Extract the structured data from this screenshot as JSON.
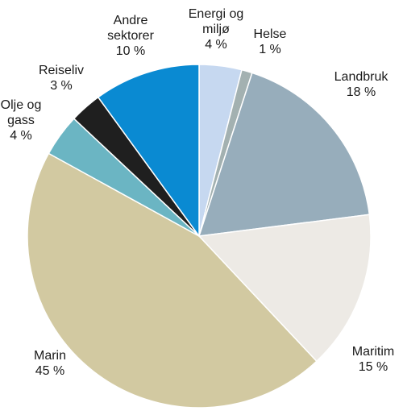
{
  "chart_data": {
    "type": "pie",
    "title": "",
    "slices": [
      {
        "name": "Energi og miljø",
        "label_lines": [
          "Energi og",
          "miljø"
        ],
        "value": 4,
        "value_label": "4 %",
        "color": "#c6d8f0"
      },
      {
        "name": "Helse",
        "label_lines": [
          "Helse"
        ],
        "value": 1,
        "value_label": "1 %",
        "color": "#a3b1b1"
      },
      {
        "name": "Landbruk",
        "label_lines": [
          "Landbruk"
        ],
        "value": 18,
        "value_label": "18 %",
        "color": "#97adbb"
      },
      {
        "name": "Maritim",
        "label_lines": [
          "Maritim"
        ],
        "value": 15,
        "value_label": "15 %",
        "color": "#edeae5"
      },
      {
        "name": "Marin",
        "label_lines": [
          "Marin"
        ],
        "value": 45,
        "value_label": "45 %",
        "color": "#d2c9a1"
      },
      {
        "name": "Olje og gass",
        "label_lines": [
          "Olje og",
          "gass"
        ],
        "value": 4,
        "value_label": "4 %",
        "color": "#6bb5c3"
      },
      {
        "name": "Reiseliv",
        "label_lines": [
          "Reiseliv"
        ],
        "value": 3,
        "value_label": "3 %",
        "color": "#1f1f1f"
      },
      {
        "name": "Andre sektorer",
        "label_lines": [
          "Andre",
          "sektorer"
        ],
        "value": 10,
        "value_label": "10 %",
        "color": "#0a8ad2"
      }
    ],
    "start_angle": "12 o'clock",
    "direction": "clockwise",
    "legend": "none (labels placed beside slices)"
  }
}
